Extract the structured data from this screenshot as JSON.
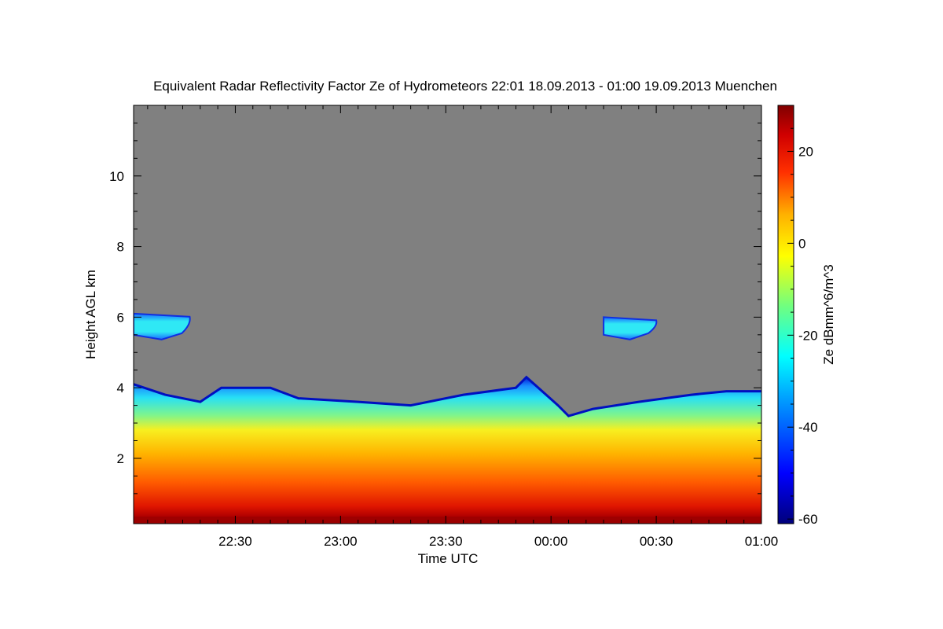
{
  "chart_data": {
    "type": "heatmap",
    "title": "Equivalent Radar Reflectivity Factor Ze of Hydrometeors   22:01 18.09.2013 - 01:00 19.09.2013 Muenchen",
    "xlabel": "Time UTC",
    "ylabel": "Height AGL km",
    "x_range_minutes_utc": [
      1321,
      1500
    ],
    "x_ticks": [
      {
        "label": "22:30",
        "minute": 1350
      },
      {
        "label": "23:00",
        "minute": 1380
      },
      {
        "label": "23:30",
        "minute": 1410
      },
      {
        "label": "00:00",
        "minute": 1440
      },
      {
        "label": "00:30",
        "minute": 1470
      },
      {
        "label": "01:00",
        "minute": 1500
      }
    ],
    "ylim": [
      0.15,
      12
    ],
    "y_ticks": [
      2,
      4,
      6,
      8,
      10
    ],
    "colorbar": {
      "label": "Ze dBmm^6/m^3",
      "range": [
        -61,
        30
      ],
      "ticks": [
        -60,
        -40,
        -20,
        0,
        20
      ],
      "colormap": "rainbow (blue to dark red)"
    },
    "background_color": "#808080",
    "low_cloud_top_km": [
      {
        "minute": 1321,
        "top": 4.1
      },
      {
        "minute": 1330,
        "top": 3.8
      },
      {
        "minute": 1340,
        "top": 3.6
      },
      {
        "minute": 1346,
        "top": 4.0
      },
      {
        "minute": 1360,
        "top": 4.0
      },
      {
        "minute": 1368,
        "top": 3.7
      },
      {
        "minute": 1385,
        "top": 3.6
      },
      {
        "minute": 1400,
        "top": 3.5
      },
      {
        "minute": 1415,
        "top": 3.8
      },
      {
        "minute": 1430,
        "top": 4.0
      },
      {
        "minute": 1433,
        "top": 4.3
      },
      {
        "minute": 1442,
        "top": 3.5
      },
      {
        "minute": 1445,
        "top": 3.2
      },
      {
        "minute": 1452,
        "top": 3.4
      },
      {
        "minute": 1465,
        "top": 3.6
      },
      {
        "minute": 1480,
        "top": 3.8
      },
      {
        "minute": 1490,
        "top": 3.9
      },
      {
        "minute": 1500,
        "top": 3.9
      }
    ],
    "upper_cloud_layers_km": [
      {
        "start_minute": 1321,
        "end_minute": 1337,
        "bottom": 5.5,
        "top": 6.1
      },
      {
        "start_minute": 1455,
        "end_minute": 1470,
        "bottom": 5.5,
        "top": 6.0
      }
    ]
  }
}
